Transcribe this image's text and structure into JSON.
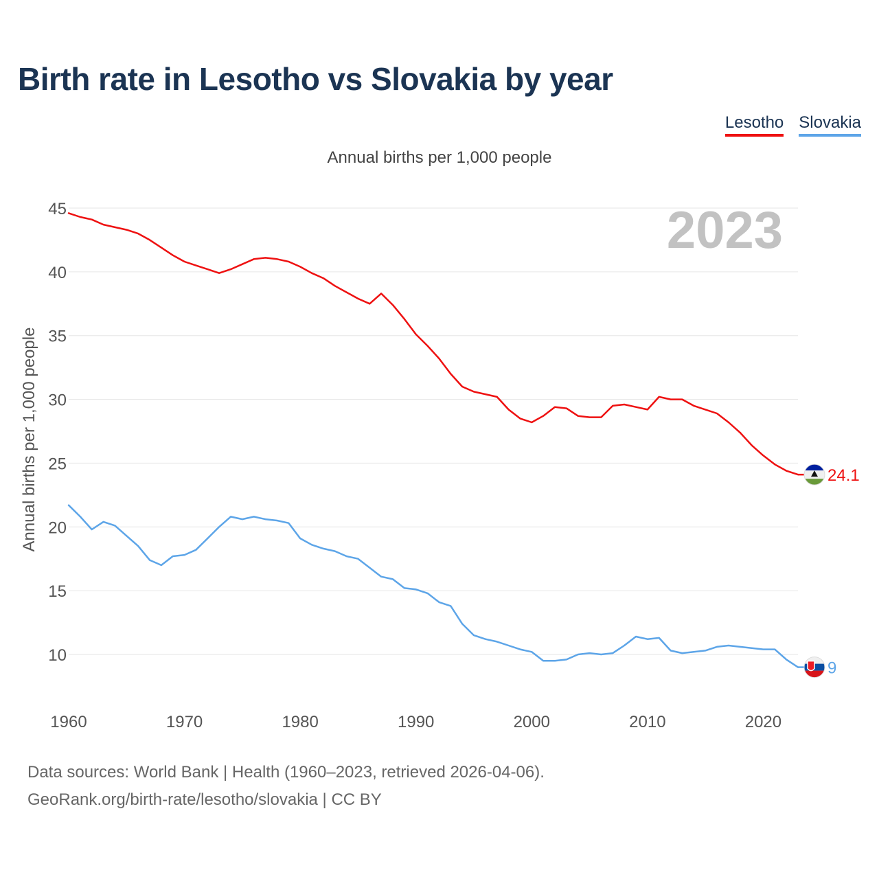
{
  "chart_data": {
    "type": "line",
    "title": "Birth rate in Lesotho vs Slovakia by year",
    "subtitle": "Annual births per 1,000 people",
    "ylabel": "Annual births per 1,000 people",
    "xlabel": "",
    "year_label": "2023",
    "xlim": [
      1960,
      2023
    ],
    "ylim": [
      6.5,
      45
    ],
    "x_ticks": [
      1960,
      1970,
      1980,
      1990,
      2000,
      2010,
      2020
    ],
    "y_ticks": [
      10,
      15,
      20,
      25,
      30,
      35,
      40,
      45
    ],
    "grid": true,
    "legend_position": "top-right",
    "series": [
      {
        "name": "Lesotho",
        "color": "#ee1111",
        "end_label": "24.1",
        "flag_icon": "lesotho-flag-icon",
        "x": [
          1960,
          1961,
          1962,
          1963,
          1964,
          1965,
          1966,
          1967,
          1968,
          1969,
          1970,
          1971,
          1972,
          1973,
          1974,
          1975,
          1976,
          1977,
          1978,
          1979,
          1980,
          1981,
          1982,
          1983,
          1984,
          1985,
          1986,
          1987,
          1988,
          1989,
          1990,
          1991,
          1992,
          1993,
          1994,
          1995,
          1996,
          1997,
          1998,
          1999,
          2000,
          2001,
          2002,
          2003,
          2004,
          2005,
          2006,
          2007,
          2008,
          2009,
          2010,
          2011,
          2012,
          2013,
          2014,
          2015,
          2016,
          2017,
          2018,
          2019,
          2020,
          2021,
          2022,
          2023
        ],
        "values": [
          44.6,
          44.3,
          44.1,
          43.7,
          43.5,
          43.3,
          43.0,
          42.5,
          41.9,
          41.3,
          40.8,
          40.5,
          40.2,
          39.9,
          40.2,
          40.6,
          41.0,
          41.1,
          41.0,
          40.8,
          40.4,
          39.9,
          39.5,
          38.9,
          38.4,
          37.9,
          37.5,
          38.3,
          37.4,
          36.3,
          35.1,
          34.2,
          33.2,
          32.0,
          31.0,
          30.6,
          30.4,
          30.2,
          29.2,
          28.5,
          28.2,
          28.7,
          29.4,
          29.3,
          28.7,
          28.6,
          28.6,
          29.5,
          29.6,
          29.4,
          29.2,
          30.2,
          30.0,
          30.0,
          29.5,
          29.2,
          28.9,
          28.2,
          27.4,
          26.4,
          25.6,
          24.9,
          24.4,
          24.1
        ]
      },
      {
        "name": "Slovakia",
        "color": "#5da5e8",
        "end_label": "9",
        "flag_icon": "slovakia-flag-icon",
        "x": [
          1960,
          1961,
          1962,
          1963,
          1964,
          1965,
          1966,
          1967,
          1968,
          1969,
          1970,
          1971,
          1972,
          1973,
          1974,
          1975,
          1976,
          1977,
          1978,
          1979,
          1980,
          1981,
          1982,
          1983,
          1984,
          1985,
          1986,
          1987,
          1988,
          1989,
          1990,
          1991,
          1992,
          1993,
          1994,
          1995,
          1996,
          1997,
          1998,
          1999,
          2000,
          2001,
          2002,
          2003,
          2004,
          2005,
          2006,
          2007,
          2008,
          2009,
          2010,
          2011,
          2012,
          2013,
          2014,
          2015,
          2016,
          2017,
          2018,
          2019,
          2020,
          2021,
          2022,
          2023
        ],
        "values": [
          21.7,
          20.8,
          19.8,
          20.4,
          20.1,
          19.3,
          18.5,
          17.4,
          17.0,
          17.7,
          17.8,
          18.2,
          19.1,
          20.0,
          20.8,
          20.6,
          20.8,
          20.6,
          20.5,
          20.3,
          19.1,
          18.6,
          18.3,
          18.1,
          17.7,
          17.5,
          16.8,
          16.1,
          15.9,
          15.2,
          15.1,
          14.8,
          14.1,
          13.8,
          12.4,
          11.5,
          11.2,
          11.0,
          10.7,
          10.4,
          10.2,
          9.5,
          9.5,
          9.6,
          10.0,
          10.1,
          10.0,
          10.1,
          10.7,
          11.4,
          11.2,
          11.3,
          10.3,
          10.1,
          10.2,
          10.3,
          10.6,
          10.7,
          10.6,
          10.5,
          10.4,
          10.4,
          9.6,
          9.0
        ]
      }
    ]
  },
  "source": {
    "line1": "Data sources: World Bank | Health (1960–2023, retrieved 2026-04-06).",
    "line2": "GeoRank.org/birth-rate/lesotho/slovakia | CC BY"
  }
}
